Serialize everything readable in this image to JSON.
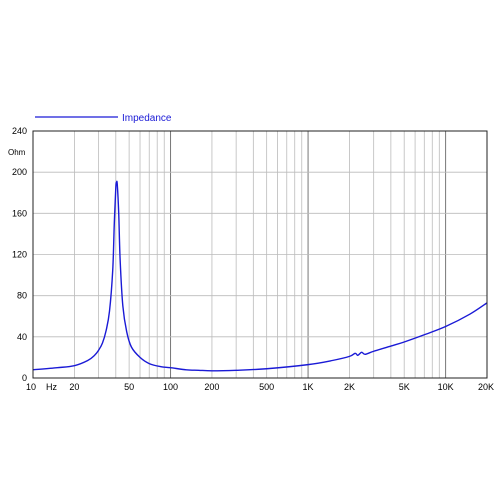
{
  "chart_data": {
    "type": "line",
    "title": "",
    "xlabel": "",
    "ylabel": "",
    "x_scale": "log",
    "xlim": [
      10,
      20000
    ],
    "ylim": [
      0,
      240
    ],
    "grid": true,
    "legend_position": "top-left",
    "y_unit": "Ohm",
    "x_unit": "Hz",
    "x_tick_labels": [
      {
        "value": 10,
        "label": "10"
      },
      {
        "value": 20,
        "label": "20"
      },
      {
        "value": 50,
        "label": "50"
      },
      {
        "value": 100,
        "label": "100"
      },
      {
        "value": 200,
        "label": "200"
      },
      {
        "value": 500,
        "label": "500"
      },
      {
        "value": 1000,
        "label": "1K"
      },
      {
        "value": 2000,
        "label": "2K"
      },
      {
        "value": 5000,
        "label": "5K"
      },
      {
        "value": 10000,
        "label": "10K"
      },
      {
        "value": 20000,
        "label": "20K"
      }
    ],
    "y_ticks": [
      0,
      40,
      80,
      120,
      160,
      200,
      240
    ],
    "series": [
      {
        "name": "Impedance",
        "color": "#1a1ad6",
        "points": [
          [
            10,
            8
          ],
          [
            15,
            10
          ],
          [
            20,
            12
          ],
          [
            25,
            17
          ],
          [
            28,
            22
          ],
          [
            30,
            27
          ],
          [
            32,
            34
          ],
          [
            34,
            46
          ],
          [
            36,
            65
          ],
          [
            38,
            105
          ],
          [
            39,
            150
          ],
          [
            40,
            185
          ],
          [
            40.5,
            190
          ],
          [
            41,
            188
          ],
          [
            42,
            160
          ],
          [
            43,
            115
          ],
          [
            45,
            70
          ],
          [
            48,
            45
          ],
          [
            52,
            30
          ],
          [
            60,
            20
          ],
          [
            70,
            14
          ],
          [
            85,
            11
          ],
          [
            100,
            10
          ],
          [
            130,
            8
          ],
          [
            160,
            7.5
          ],
          [
            200,
            7
          ],
          [
            300,
            7.5
          ],
          [
            500,
            9
          ],
          [
            1000,
            13
          ],
          [
            1500,
            17
          ],
          [
            2000,
            21
          ],
          [
            2200,
            24
          ],
          [
            2300,
            22
          ],
          [
            2450,
            25
          ],
          [
            2600,
            23
          ],
          [
            3000,
            26
          ],
          [
            4000,
            31
          ],
          [
            5000,
            35
          ],
          [
            7000,
            42
          ],
          [
            10000,
            50
          ],
          [
            15000,
            62
          ],
          [
            20000,
            73
          ]
        ]
      }
    ]
  }
}
